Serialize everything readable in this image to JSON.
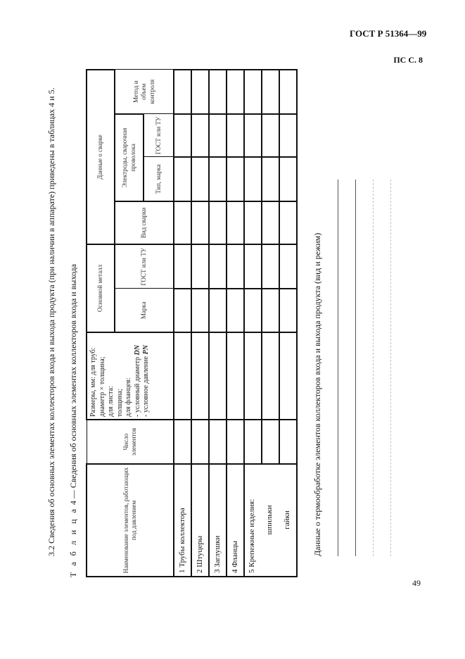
{
  "header": {
    "standard": "ГОСТ Р 51364—99",
    "page_ref": "ПС С. 8"
  },
  "intro": "3.2 Сведения об основных элементах коллекторов входа и выхода продукта (при наличии в аппарате) приведены в таблицах 4 и 5.",
  "table": {
    "caption_prefix": "Т а б л и ц а",
    "caption_rest": "4 — Сведения об основных элементах коллекторов входа и выхода",
    "columns": {
      "name": "Наименование элементов, работающих под давлением",
      "count": "Число элементов",
      "dims": [
        "Размеры, мм: для труб:",
        "диаметр × толщина;",
        "для листа:",
        "толщина;",
        "для фланцев:"
      ],
      "dims_dn": "- условный диаметр ",
      "dims_dn_sym": "DN",
      "dims_pn": "- условное давление ",
      "dims_pn_sym": "PN",
      "base_metal": "Основной металл",
      "grade": "Марка",
      "gost": "ГОСТ или ТУ",
      "welding_data": "Данные о сварке",
      "weld_type": "Вид сварки",
      "electrodes": "Электроды, сварочная проволока",
      "type_grade": "Тип, марка",
      "gost2": "ГОСТ или ТУ",
      "method": "Метод и объем контроля"
    },
    "rows": [
      "1 Трубы коллектора",
      "2 Штуцеры",
      "3 Заглушки",
      "4 Фланцы"
    ],
    "row5": {
      "label": "5 Крепежные изделия:",
      "sub": [
        "шпильки",
        "гайки"
      ]
    }
  },
  "thermo": "Данные о термообработке элементов коллекторов входа и выхода продукта (вид и режим)",
  "page_number": "49"
}
